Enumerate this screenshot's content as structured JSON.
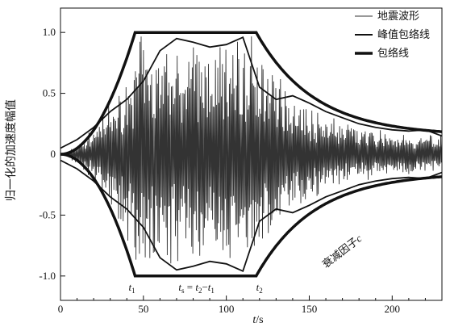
{
  "chart_data": {
    "type": "line",
    "title": "",
    "xlabel": "t/s",
    "ylabel": "归一化的加速度幅值",
    "xlim": [
      0,
      230
    ],
    "ylim": [
      -1.2,
      1.2
    ],
    "x_ticks": [
      0,
      50,
      100,
      150,
      200
    ],
    "y_ticks": [
      1.0,
      0.5,
      0,
      -0.5,
      -1.0
    ],
    "x_tick_labels": [
      "0",
      "50",
      "100",
      "150",
      "200"
    ],
    "y_tick_labels": [
      "1.0",
      "0.5",
      "0",
      "-0.5",
      "-1.0"
    ],
    "grid": false,
    "legend_position": "top-right",
    "series": [
      {
        "name": "地震波形",
        "style": "thin",
        "color": "#333333",
        "description": "normalized acceleration record within the envelope"
      },
      {
        "name": "峰值包络线",
        "style": "medium",
        "color": "#111111",
        "x": [
          0,
          10,
          20,
          30,
          40,
          50,
          60,
          70,
          80,
          90,
          100,
          110,
          120,
          130,
          140,
          150,
          160,
          170,
          180,
          190,
          200,
          210,
          220,
          230
        ],
        "y": [
          0.05,
          0.12,
          0.22,
          0.35,
          0.45,
          0.6,
          0.85,
          0.95,
          0.92,
          0.88,
          0.9,
          0.96,
          0.55,
          0.45,
          0.48,
          0.42,
          0.35,
          0.3,
          0.25,
          0.22,
          0.2,
          0.19,
          0.2,
          0.15
        ]
      },
      {
        "name": "包络线",
        "style": "thick",
        "color": "#111111",
        "x": [
          0,
          10,
          20,
          30,
          40,
          45,
          110,
          118,
          130,
          150,
          170,
          190,
          210,
          230
        ],
        "y": [
          0,
          0.09,
          0.24,
          0.45,
          0.76,
          1.0,
          1.0,
          1.0,
          0.71,
          0.44,
          0.29,
          0.21,
          0.18,
          0.16
        ]
      }
    ],
    "annotations": {
      "t1": {
        "x": 45,
        "label": "t",
        "sub": "1"
      },
      "t2": {
        "x": 118,
        "label": "t",
        "sub": "2"
      },
      "ts": {
        "x": 82,
        "text_parts": [
          "t",
          "s",
          " = ",
          "t",
          "2",
          "−",
          "t",
          "1"
        ]
      },
      "decay": {
        "text": "衰减因子c",
        "x": 160,
        "y": -0.62
      }
    }
  }
}
